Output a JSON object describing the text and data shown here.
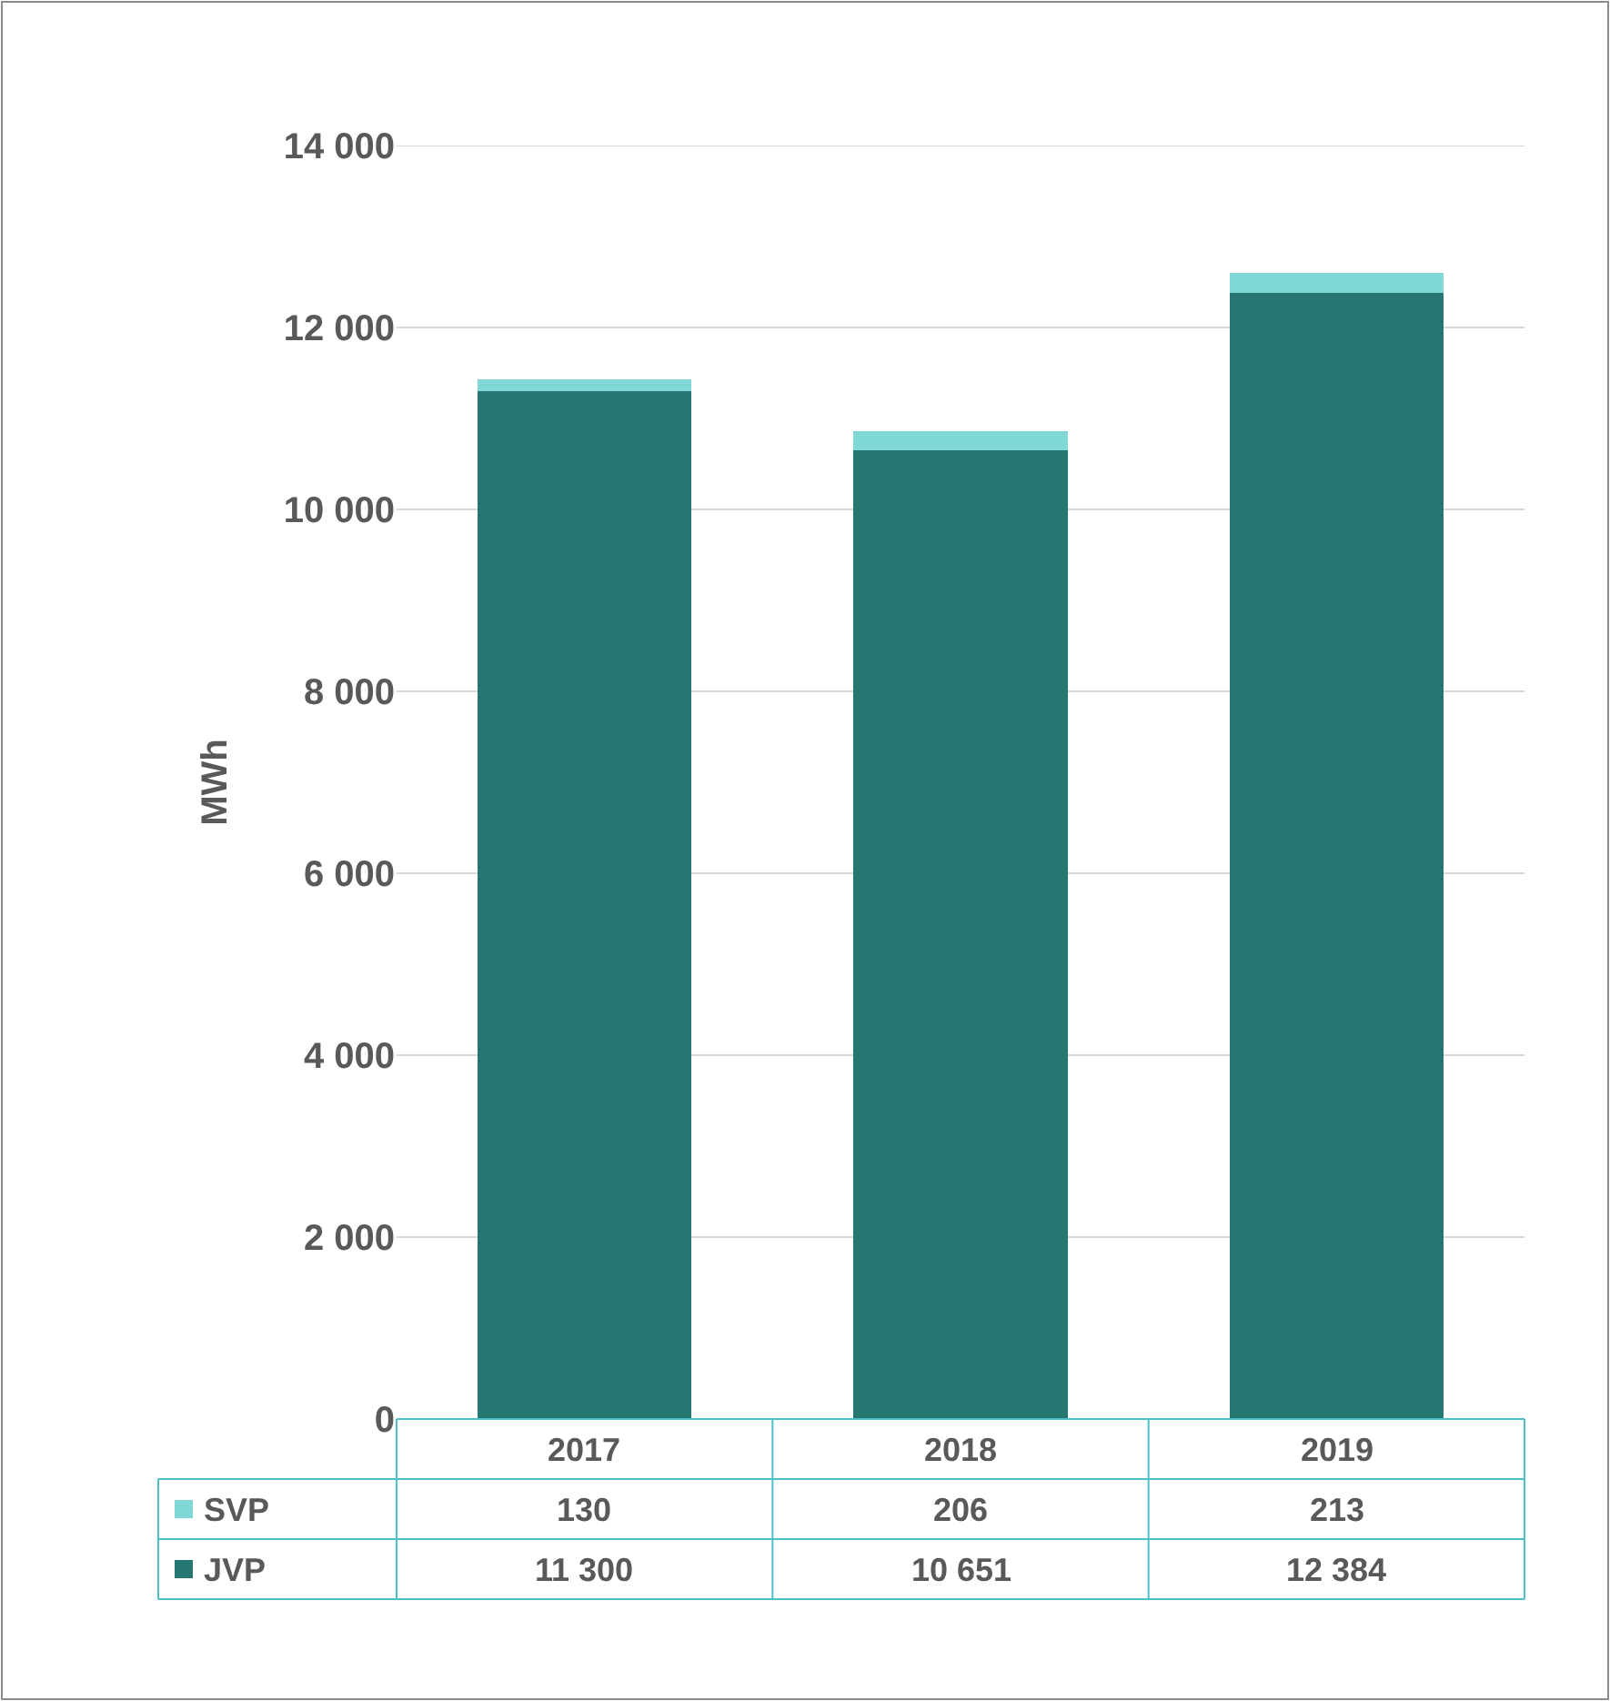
{
  "chart_data": {
    "type": "bar",
    "stacked": true,
    "ylabel": "MWh",
    "categories": [
      "2017",
      "2018",
      "2019"
    ],
    "series": [
      {
        "name": "JVP",
        "color": "#267672",
        "values": [
          11300,
          10651,
          12384
        ],
        "value_labels": [
          "11 300",
          "10 651",
          "12 384"
        ]
      },
      {
        "name": "SVP",
        "color": "#7fd8d6",
        "values": [
          130,
          206,
          213
        ],
        "value_labels": [
          "130",
          "206",
          "213"
        ]
      }
    ],
    "ylim": [
      0,
      14000
    ],
    "yticks": [
      {
        "value": 0,
        "label": "0"
      },
      {
        "value": 2000,
        "label": "2 000"
      },
      {
        "value": 4000,
        "label": "4 000"
      },
      {
        "value": 6000,
        "label": "6 000"
      },
      {
        "value": 8000,
        "label": "8 000"
      },
      {
        "value": 10000,
        "label": "10 000"
      },
      {
        "value": 12000,
        "label": "12 000"
      },
      {
        "value": 14000,
        "label": "14 000"
      }
    ],
    "grid": "y",
    "legend": "bottom left"
  }
}
